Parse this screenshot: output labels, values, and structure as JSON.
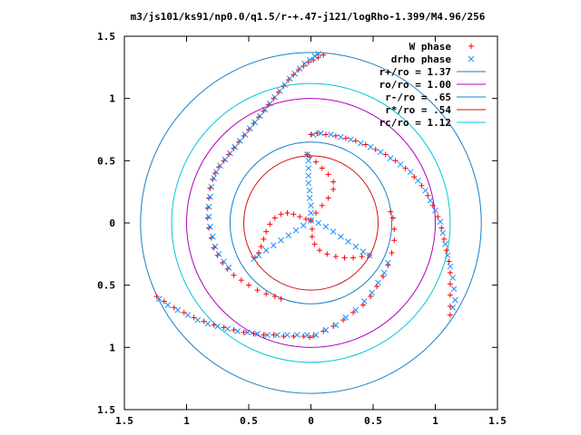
{
  "chart_data": {
    "type": "scatter",
    "title": "m3/js101/ks91/np0.0/q1.5/r-+.47-j121/logRho-1.399/M4.96/256",
    "xlim": [
      -1.5,
      1.5
    ],
    "ylim": [
      -1.5,
      1.5
    ],
    "xticks": [
      {
        "v": -1.5,
        "label": "1.5"
      },
      {
        "v": -1.0,
        "label": "1"
      },
      {
        "v": -0.5,
        "label": "0.5"
      },
      {
        "v": 0,
        "label": "0"
      },
      {
        "v": 0.5,
        "label": "0.5"
      },
      {
        "v": 1.0,
        "label": "1"
      },
      {
        "v": 1.5,
        "label": "1.5"
      }
    ],
    "yticks": [
      {
        "v": 1.5,
        "label": "1.5"
      },
      {
        "v": 1.0,
        "label": "1"
      },
      {
        "v": 0.5,
        "label": "0.5"
      },
      {
        "v": 0,
        "label": "0"
      },
      {
        "v": -0.5,
        "label": "0.5"
      },
      {
        "v": -1.0,
        "label": "1"
      },
      {
        "v": -1.5,
        "label": "1.5"
      }
    ],
    "grid": false,
    "legend_position": "top-right",
    "series": [
      {
        "name": "W phase",
        "marker": "plus",
        "color": "#ff0000",
        "points": [
          [
            0.1,
            1.35
          ],
          [
            0.06,
            1.33
          ],
          [
            0.02,
            1.31
          ],
          [
            -0.02,
            1.29
          ],
          [
            -0.06,
            1.26
          ],
          [
            -0.1,
            1.23
          ],
          [
            -0.14,
            1.19
          ],
          [
            -0.18,
            1.15
          ],
          [
            -0.22,
            1.1
          ],
          [
            -0.26,
            1.05
          ],
          [
            -0.3,
            1.0
          ],
          [
            -0.34,
            0.95
          ],
          [
            -0.38,
            0.9
          ],
          [
            -0.42,
            0.85
          ],
          [
            -0.46,
            0.8
          ],
          [
            -0.5,
            0.75
          ],
          [
            -0.54,
            0.7
          ],
          [
            -0.58,
            0.65
          ],
          [
            -0.62,
            0.6
          ],
          [
            -0.66,
            0.55
          ],
          [
            -0.7,
            0.5
          ],
          [
            -0.74,
            0.45
          ],
          [
            -0.77,
            0.4
          ],
          [
            -0.79,
            0.35
          ],
          [
            -0.81,
            0.28
          ],
          [
            -0.82,
            0.2
          ],
          [
            -0.83,
            0.12
          ],
          [
            -0.83,
            0.04
          ],
          [
            -0.82,
            -0.04
          ],
          [
            -0.8,
            -0.12
          ],
          [
            -0.78,
            -0.2
          ],
          [
            -0.75,
            -0.26
          ],
          [
            -0.71,
            -0.32
          ],
          [
            -0.67,
            -0.37
          ],
          [
            -0.62,
            -0.42
          ],
          [
            -0.56,
            -0.46
          ],
          [
            -0.5,
            -0.5
          ],
          [
            -0.43,
            -0.54
          ],
          [
            -0.36,
            -0.57
          ],
          [
            -0.29,
            -0.59
          ],
          [
            -0.24,
            -0.61
          ],
          [
            0.0,
            0.71
          ],
          [
            0.05,
            0.72
          ],
          [
            0.12,
            0.71
          ],
          [
            0.2,
            0.7
          ],
          [
            0.28,
            0.68
          ],
          [
            0.36,
            0.66
          ],
          [
            0.44,
            0.63
          ],
          [
            0.52,
            0.59
          ],
          [
            0.6,
            0.55
          ],
          [
            0.68,
            0.5
          ],
          [
            0.76,
            0.44
          ],
          [
            0.83,
            0.37
          ],
          [
            0.89,
            0.3
          ],
          [
            0.94,
            0.22
          ],
          [
            0.98,
            0.14
          ],
          [
            1.02,
            0.05
          ],
          [
            1.05,
            -0.04
          ],
          [
            1.07,
            -0.13
          ],
          [
            1.09,
            -0.22
          ],
          [
            1.11,
            -0.31
          ],
          [
            1.12,
            -0.4
          ],
          [
            1.12,
            -0.49
          ],
          [
            1.12,
            -0.58
          ],
          [
            1.12,
            -0.67
          ],
          [
            1.12,
            -0.74
          ],
          [
            -1.24,
            -0.59
          ],
          [
            -1.18,
            -0.63
          ],
          [
            -1.1,
            -0.68
          ],
          [
            -1.02,
            -0.72
          ],
          [
            -0.94,
            -0.76
          ],
          [
            -0.86,
            -0.79
          ],
          [
            -0.78,
            -0.82
          ],
          [
            -0.7,
            -0.84
          ],
          [
            -0.62,
            -0.86
          ],
          [
            -0.54,
            -0.88
          ],
          [
            -0.46,
            -0.89
          ],
          [
            -0.38,
            -0.9
          ],
          [
            -0.3,
            -0.9
          ],
          [
            -0.22,
            -0.91
          ],
          [
            -0.14,
            -0.91
          ],
          [
            -0.06,
            -0.91
          ],
          [
            -0.01,
            -0.92
          ],
          [
            0.02,
            -0.91
          ],
          [
            0.1,
            -0.87
          ],
          [
            0.18,
            -0.83
          ],
          [
            0.26,
            -0.78
          ],
          [
            0.34,
            -0.72
          ],
          [
            0.42,
            -0.66
          ],
          [
            0.48,
            -0.59
          ],
          [
            0.53,
            -0.51
          ],
          [
            0.58,
            -0.43
          ],
          [
            0.62,
            -0.34
          ],
          [
            0.65,
            -0.24
          ],
          [
            0.67,
            -0.14
          ],
          [
            0.67,
            -0.05
          ],
          [
            0.66,
            0.04
          ],
          [
            0.64,
            0.09
          ],
          [
            0.0,
            0.02
          ],
          [
            -0.04,
            0.03
          ],
          [
            -0.09,
            0.05
          ],
          [
            -0.14,
            0.07
          ],
          [
            -0.19,
            0.08
          ],
          [
            -0.24,
            0.07
          ],
          [
            -0.29,
            0.04
          ],
          [
            -0.33,
            -0.01
          ],
          [
            -0.36,
            -0.07
          ],
          [
            -0.38,
            -0.13
          ],
          [
            -0.4,
            -0.19
          ],
          [
            -0.42,
            -0.24
          ],
          [
            -0.45,
            -0.28
          ],
          [
            0.0,
            0.02
          ],
          [
            0.01,
            -0.05
          ],
          [
            0.01,
            -0.11
          ],
          [
            0.03,
            -0.17
          ],
          [
            0.07,
            -0.22
          ],
          [
            0.13,
            -0.25
          ],
          [
            0.2,
            -0.27
          ],
          [
            0.27,
            -0.28
          ],
          [
            0.34,
            -0.28
          ],
          [
            0.41,
            -0.27
          ],
          [
            0.47,
            -0.26
          ],
          [
            0.0,
            0.02
          ],
          [
            0.04,
            0.08
          ],
          [
            0.09,
            0.14
          ],
          [
            0.14,
            0.2
          ],
          [
            0.18,
            0.27
          ],
          [
            0.18,
            0.33
          ],
          [
            0.14,
            0.39
          ],
          [
            0.09,
            0.44
          ],
          [
            0.04,
            0.49
          ],
          [
            -0.01,
            0.53
          ],
          [
            -0.03,
            0.55
          ]
        ]
      },
      {
        "name": "drho phase",
        "marker": "x",
        "color": "#1e8fff",
        "points": [
          [
            0.06,
            1.36
          ],
          [
            0.03,
            1.34
          ],
          [
            -0.01,
            1.31
          ],
          [
            -0.05,
            1.28
          ],
          [
            -0.09,
            1.24
          ],
          [
            -0.13,
            1.2
          ],
          [
            -0.17,
            1.16
          ],
          [
            -0.21,
            1.11
          ],
          [
            -0.25,
            1.06
          ],
          [
            -0.29,
            1.01
          ],
          [
            -0.33,
            0.96
          ],
          [
            -0.37,
            0.91
          ],
          [
            -0.41,
            0.86
          ],
          [
            -0.45,
            0.81
          ],
          [
            -0.49,
            0.76
          ],
          [
            -0.53,
            0.71
          ],
          [
            -0.57,
            0.66
          ],
          [
            -0.61,
            0.61
          ],
          [
            -0.65,
            0.56
          ],
          [
            -0.69,
            0.51
          ],
          [
            -0.73,
            0.46
          ],
          [
            -0.76,
            0.41
          ],
          [
            -0.78,
            0.36
          ],
          [
            -0.8,
            0.29
          ],
          [
            -0.81,
            0.21
          ],
          [
            -0.82,
            0.13
          ],
          [
            -0.82,
            0.05
          ],
          [
            -0.81,
            -0.03
          ],
          [
            -0.79,
            -0.11
          ],
          [
            -0.77,
            -0.19
          ],
          [
            -0.74,
            -0.25
          ],
          [
            -0.7,
            -0.31
          ],
          [
            -0.66,
            -0.36
          ],
          [
            0.02,
            0.71
          ],
          [
            0.08,
            0.72
          ],
          [
            0.16,
            0.71
          ],
          [
            0.24,
            0.69
          ],
          [
            0.32,
            0.67
          ],
          [
            0.4,
            0.64
          ],
          [
            0.48,
            0.61
          ],
          [
            0.56,
            0.57
          ],
          [
            0.64,
            0.52
          ],
          [
            0.72,
            0.47
          ],
          [
            0.8,
            0.41
          ],
          [
            0.86,
            0.34
          ],
          [
            0.92,
            0.26
          ],
          [
            0.96,
            0.18
          ],
          [
            1.0,
            0.1
          ],
          [
            1.04,
            0.01
          ],
          [
            1.06,
            -0.08
          ],
          [
            1.08,
            -0.17
          ],
          [
            1.1,
            -0.26
          ],
          [
            1.12,
            -0.35
          ],
          [
            1.14,
            -0.44
          ],
          [
            1.15,
            -0.53
          ],
          [
            1.16,
            -0.62
          ],
          [
            1.14,
            -0.68
          ],
          [
            -1.22,
            -0.61
          ],
          [
            -1.15,
            -0.66
          ],
          [
            -1.07,
            -0.7
          ],
          [
            -0.99,
            -0.74
          ],
          [
            -0.91,
            -0.78
          ],
          [
            -0.83,
            -0.81
          ],
          [
            -0.75,
            -0.83
          ],
          [
            -0.67,
            -0.85
          ],
          [
            -0.59,
            -0.87
          ],
          [
            -0.51,
            -0.88
          ],
          [
            -0.43,
            -0.89
          ],
          [
            -0.35,
            -0.9
          ],
          [
            -0.27,
            -0.9
          ],
          [
            -0.19,
            -0.9
          ],
          [
            -0.11,
            -0.9
          ],
          [
            -0.03,
            -0.9
          ],
          [
            0.04,
            -0.9
          ],
          [
            0.12,
            -0.86
          ],
          [
            0.2,
            -0.82
          ],
          [
            0.28,
            -0.76
          ],
          [
            0.36,
            -0.7
          ],
          [
            0.43,
            -0.63
          ],
          [
            0.49,
            -0.56
          ],
          [
            0.54,
            -0.48
          ],
          [
            0.59,
            -0.4
          ],
          [
            0.62,
            -0.32
          ],
          [
            -0.03,
            0.55
          ],
          [
            -0.02,
            0.5
          ],
          [
            -0.02,
            0.44
          ],
          [
            -0.02,
            0.38
          ],
          [
            -0.02,
            0.32
          ],
          [
            -0.01,
            0.26
          ],
          [
            -0.01,
            0.2
          ],
          [
            0.0,
            0.14
          ],
          [
            0.0,
            0.08
          ],
          [
            0.0,
            0.02
          ],
          [
            0.0,
            0.02
          ],
          [
            0.06,
            0.0
          ],
          [
            0.12,
            -0.03
          ],
          [
            0.18,
            -0.07
          ],
          [
            0.24,
            -0.11
          ],
          [
            0.3,
            -0.15
          ],
          [
            0.36,
            -0.19
          ],
          [
            0.42,
            -0.23
          ],
          [
            0.47,
            -0.26
          ],
          [
            0.0,
            0.02
          ],
          [
            -0.06,
            -0.02
          ],
          [
            -0.12,
            -0.06
          ],
          [
            -0.18,
            -0.1
          ],
          [
            -0.24,
            -0.14
          ],
          [
            -0.3,
            -0.18
          ],
          [
            -0.36,
            -0.22
          ],
          [
            -0.42,
            -0.26
          ],
          [
            -0.46,
            -0.29
          ]
        ]
      }
    ],
    "circles": [
      {
        "name": "r+/ro = 1.37",
        "r": 1.37,
        "color": "#1a7fc8"
      },
      {
        "name": "ro/ro = 1.00",
        "r": 1.0,
        "color": "#b000c0"
      },
      {
        "name": "r-/ro = .65",
        "r": 0.65,
        "color": "#1a7fc8"
      },
      {
        "name": "r*/ro = .54",
        "r": 0.54,
        "color": "#d01010"
      },
      {
        "name": "rc/ro = 1.12",
        "r": 1.12,
        "color": "#00c8d8"
      }
    ]
  }
}
